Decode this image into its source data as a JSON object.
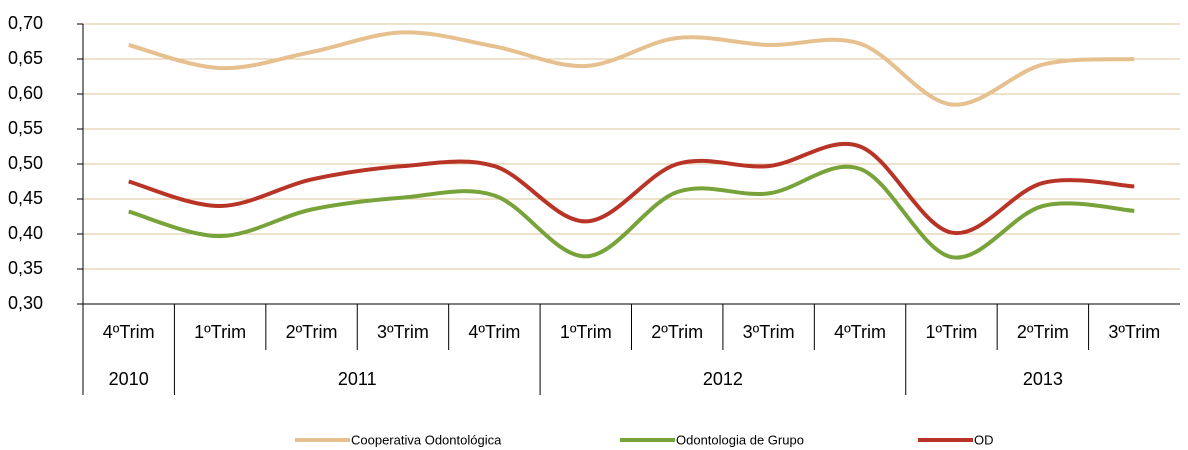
{
  "chart_data": {
    "type": "line",
    "categories": [
      "4ºTrim",
      "1ºTrim",
      "2ºTrim",
      "3ºTrim",
      "4ºTrim",
      "1ºTrim",
      "2ºTrim",
      "3ºTrim",
      "4ºTrim",
      "1ºTrim",
      "2ºTrim",
      "3ºTrim"
    ],
    "years": [
      "2010",
      "2011",
      "2011",
      "2011",
      "2011",
      "2012",
      "2012",
      "2012",
      "2012",
      "2013",
      "2013",
      "2013"
    ],
    "series": [
      {
        "name": "Cooperativa Odontológica",
        "color": "#e6c08e",
        "values": [
          0.67,
          0.637,
          0.66,
          0.688,
          0.668,
          0.64,
          0.68,
          0.67,
          0.672,
          0.585,
          0.642,
          0.65
        ]
      },
      {
        "name": "Odontologia de Grupo",
        "color": "#77a33a",
        "values": [
          0.432,
          0.397,
          0.435,
          0.452,
          0.455,
          0.368,
          0.46,
          0.458,
          0.493,
          0.367,
          0.44,
          0.433
        ]
      },
      {
        "name": "OD",
        "color": "#b83427",
        "values": [
          0.475,
          0.44,
          0.478,
          0.497,
          0.497,
          0.418,
          0.5,
          0.497,
          0.525,
          0.402,
          0.473,
          0.468
        ]
      }
    ],
    "ylim": [
      0.3,
      0.7
    ],
    "yticks": [
      {
        "value": 0.3,
        "label": "0,30"
      },
      {
        "value": 0.35,
        "label": "0,35"
      },
      {
        "value": 0.4,
        "label": "0,40"
      },
      {
        "value": 0.45,
        "label": "0,45"
      },
      {
        "value": 0.5,
        "label": "0,50"
      },
      {
        "value": 0.55,
        "label": "0,55"
      },
      {
        "value": 0.6,
        "label": "0,60"
      },
      {
        "value": 0.65,
        "label": "0,65"
      },
      {
        "value": 0.7,
        "label": "0,70"
      }
    ],
    "grid": true,
    "smooth": true,
    "legend": "bottom"
  }
}
